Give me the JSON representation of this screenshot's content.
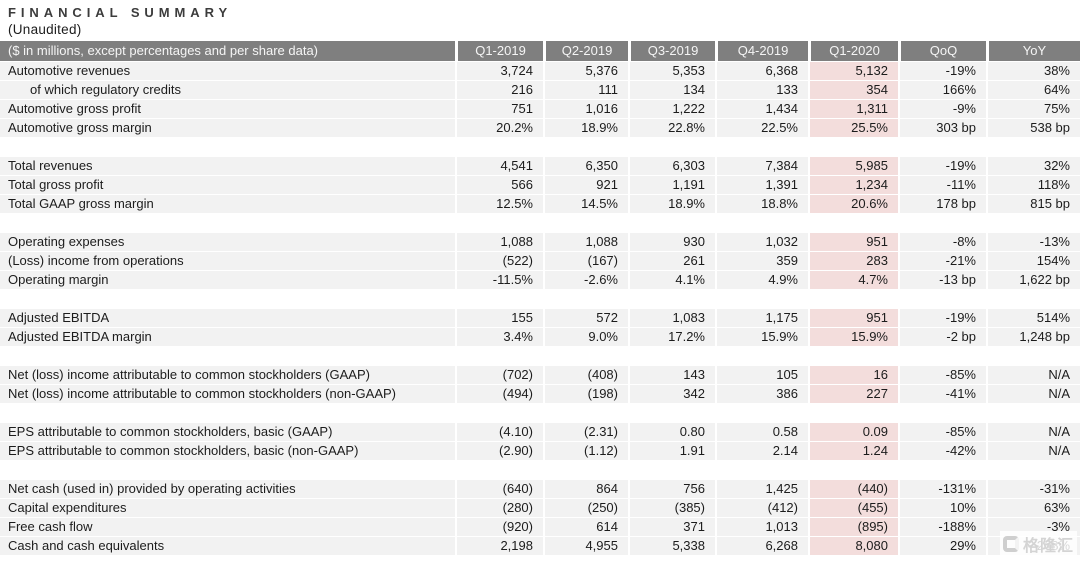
{
  "title": "FINANCIAL SUMMARY",
  "subtitle": "(Unaudited)",
  "colors": {
    "header_bg": "#7f7f7f",
    "header_text": "#f5f5f5",
    "row_bg": "#f2f2f2",
    "highlight_bg": "#f3dddc",
    "text": "#1c1c1c"
  },
  "watermark": {
    "name": "gelonghui",
    "text": "格隆汇"
  },
  "table": {
    "header": {
      "label": "($ in millions, except percentages and per share data)",
      "columns": [
        "Q1-2019",
        "Q2-2019",
        "Q3-2019",
        "Q4-2019",
        "Q1-2020",
        "QoQ",
        "YoY"
      ]
    },
    "highlight_column": "Q1-2020",
    "sections": [
      {
        "rows": [
          {
            "label": "Automotive revenues",
            "indent": false,
            "values": [
              "3,724",
              "5,376",
              "5,353",
              "6,368",
              "5,132",
              "-19%",
              "38%"
            ]
          },
          {
            "label": "of which regulatory credits",
            "indent": true,
            "values": [
              "216",
              "111",
              "134",
              "133",
              "354",
              "166%",
              "64%"
            ]
          },
          {
            "label": "Automotive gross profit",
            "indent": false,
            "values": [
              "751",
              "1,016",
              "1,222",
              "1,434",
              "1,311",
              "-9%",
              "75%"
            ]
          },
          {
            "label": "Automotive gross margin",
            "indent": false,
            "values": [
              "20.2%",
              "18.9%",
              "22.8%",
              "22.5%",
              "25.5%",
              "303 bp",
              "538 bp"
            ]
          }
        ]
      },
      {
        "rows": [
          {
            "label": "Total revenues",
            "indent": false,
            "values": [
              "4,541",
              "6,350",
              "6,303",
              "7,384",
              "5,985",
              "-19%",
              "32%"
            ]
          },
          {
            "label": "Total gross profit",
            "indent": false,
            "values": [
              "566",
              "921",
              "1,191",
              "1,391",
              "1,234",
              "-11%",
              "118%"
            ]
          },
          {
            "label": "Total GAAP gross margin",
            "indent": false,
            "values": [
              "12.5%",
              "14.5%",
              "18.9%",
              "18.8%",
              "20.6%",
              "178 bp",
              "815 bp"
            ]
          }
        ]
      },
      {
        "rows": [
          {
            "label": "Operating expenses",
            "indent": false,
            "values": [
              "1,088",
              "1,088",
              "930",
              "1,032",
              "951",
              "-8%",
              "-13%"
            ]
          },
          {
            "label": "(Loss) income from operations",
            "indent": false,
            "values": [
              "(522)",
              "(167)",
              "261",
              "359",
              "283",
              "-21%",
              "154%"
            ]
          },
          {
            "label": "Operating margin",
            "indent": false,
            "values": [
              "-11.5%",
              "-2.6%",
              "4.1%",
              "4.9%",
              "4.7%",
              "-13 bp",
              "1,622 bp"
            ]
          }
        ]
      },
      {
        "rows": [
          {
            "label": "Adjusted EBITDA",
            "indent": false,
            "values": [
              "155",
              "572",
              "1,083",
              "1,175",
              "951",
              "-19%",
              "514%"
            ]
          },
          {
            "label": "Adjusted EBITDA margin",
            "indent": false,
            "values": [
              "3.4%",
              "9.0%",
              "17.2%",
              "15.9%",
              "15.9%",
              "-2 bp",
              "1,248 bp"
            ]
          }
        ]
      },
      {
        "rows": [
          {
            "label": "Net (loss) income attributable to common stockholders (GAAP)",
            "indent": false,
            "values": [
              "(702)",
              "(408)",
              "143",
              "105",
              "16",
              "-85%",
              "N/A"
            ]
          },
          {
            "label": "Net (loss) income attributable to common stockholders (non-GAAP)",
            "indent": false,
            "values": [
              "(494)",
              "(198)",
              "342",
              "386",
              "227",
              "-41%",
              "N/A"
            ]
          }
        ]
      },
      {
        "rows": [
          {
            "label": "EPS attributable to common stockholders, basic (GAAP)",
            "indent": false,
            "values": [
              "(4.10)",
              "(2.31)",
              "0.80",
              "0.58",
              "0.09",
              "-85%",
              "N/A"
            ]
          },
          {
            "label": "EPS attributable to common stockholders, basic (non-GAAP)",
            "indent": false,
            "values": [
              "(2.90)",
              "(1.12)",
              "1.91",
              "2.14",
              "1.24",
              "-42%",
              "N/A"
            ]
          }
        ]
      },
      {
        "rows": [
          {
            "label": "Net cash (used in) provided by operating activities",
            "indent": false,
            "values": [
              "(640)",
              "864",
              "756",
              "1,425",
              "(440)",
              "-131%",
              "-31%"
            ]
          },
          {
            "label": "Capital expenditures",
            "indent": false,
            "values": [
              "(280)",
              "(250)",
              "(385)",
              "(412)",
              "(455)",
              "10%",
              "63%"
            ]
          },
          {
            "label": "Free cash flow",
            "indent": false,
            "values": [
              "(920)",
              "614",
              "371",
              "1,013",
              "(895)",
              "-188%",
              "-3%"
            ]
          },
          {
            "label": "Cash and cash equivalents",
            "indent": false,
            "values": [
              "2,198",
              "4,955",
              "5,338",
              "6,268",
              "8,080",
              "29%",
              "268%"
            ]
          }
        ]
      }
    ]
  }
}
